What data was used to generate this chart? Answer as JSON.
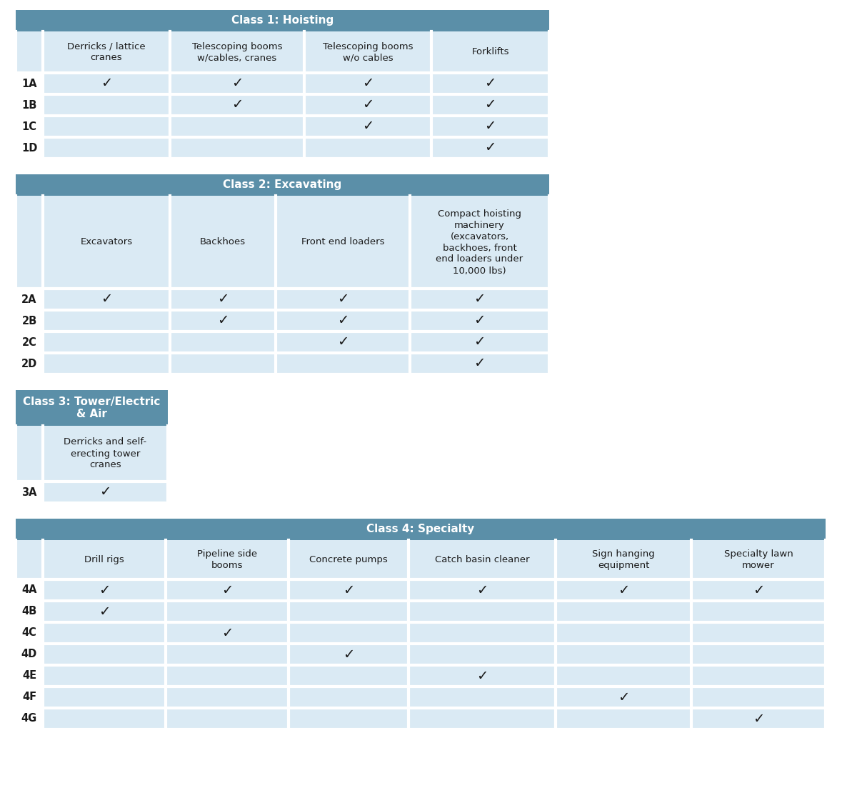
{
  "header_color": "#5b8fa8",
  "cell_bg": "#daeaf4",
  "text_color": "#1a1a1a",
  "check": "✓",
  "white": "#ffffff",
  "class1": {
    "title": "Class 1: Hoisting",
    "col_headers": [
      "Derricks / lattice\ncranes",
      "Telescoping booms\nw/cables, cranes",
      "Telescoping booms\nw/o cables",
      "Forklifts"
    ],
    "rows": [
      {
        "label": "1A",
        "checks": [
          true,
          true,
          true,
          true
        ]
      },
      {
        "label": "1B",
        "checks": [
          false,
          true,
          true,
          true
        ]
      },
      {
        "label": "1C",
        "checks": [
          false,
          false,
          true,
          true
        ]
      },
      {
        "label": "1D",
        "checks": [
          false,
          false,
          false,
          true
        ]
      }
    ]
  },
  "class2": {
    "title": "Class 2: Excavating",
    "col_headers": [
      "Excavators",
      "Backhoes",
      "Front end loaders",
      "Compact hoisting\nmachinery\n(excavators,\nbackhoes, front\nend loaders under\n10,000 lbs)"
    ],
    "rows": [
      {
        "label": "2A",
        "checks": [
          true,
          true,
          true,
          true
        ]
      },
      {
        "label": "2B",
        "checks": [
          false,
          true,
          true,
          true
        ]
      },
      {
        "label": "2C",
        "checks": [
          false,
          false,
          true,
          true
        ]
      },
      {
        "label": "2D",
        "checks": [
          false,
          false,
          false,
          true
        ]
      }
    ]
  },
  "class3": {
    "title": "Class 3: Tower/Electric\n& Air",
    "col_headers": [
      "Derricks and self-\nerecting tower\ncranes"
    ],
    "rows": [
      {
        "label": "3A",
        "checks": [
          true
        ]
      }
    ]
  },
  "class4": {
    "title": "Class 4: Specialty",
    "col_headers": [
      "Drill rigs",
      "Pipeline side\nbooms",
      "Concrete pumps",
      "Catch basin cleaner",
      "Sign hanging\nequipment",
      "Specialty lawn\nmower"
    ],
    "rows": [
      {
        "label": "4A",
        "checks": [
          true,
          true,
          true,
          true,
          true,
          true
        ]
      },
      {
        "label": "4B",
        "checks": [
          true,
          false,
          false,
          false,
          false,
          false
        ]
      },
      {
        "label": "4C",
        "checks": [
          false,
          true,
          false,
          false,
          false,
          false
        ]
      },
      {
        "label": "4D",
        "checks": [
          false,
          false,
          true,
          false,
          false,
          false
        ]
      },
      {
        "label": "4E",
        "checks": [
          false,
          false,
          false,
          true,
          false,
          false
        ]
      },
      {
        "label": "4F",
        "checks": [
          false,
          false,
          false,
          false,
          true,
          false
        ]
      },
      {
        "label": "4G",
        "checks": [
          false,
          false,
          false,
          false,
          false,
          true
        ]
      }
    ]
  }
}
